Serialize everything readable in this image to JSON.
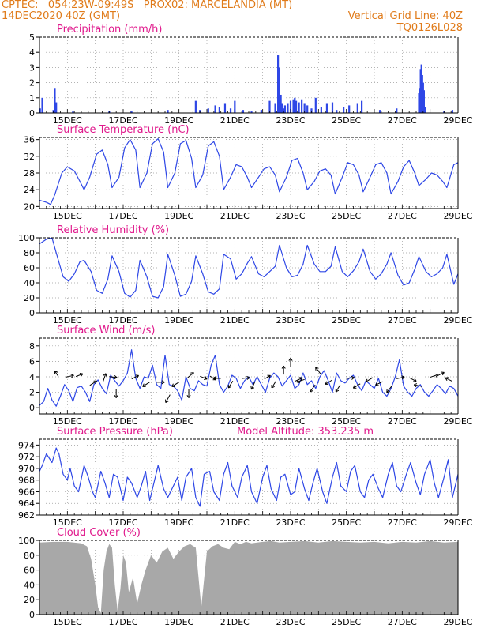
{
  "header": {
    "line1": "CPTEC:   054:23W-09:49S   PROX02: MARCELANDIA (MT)",
    "line2_left": "14DEC2020 40Z (GMT)",
    "line2_right": "Vertical Grid Line: 40Z",
    "line3_right": "TQ0126L028"
  },
  "colors": {
    "header": "#e07b1a",
    "title": "#e0198c",
    "series": "#2e47e6",
    "bars": "#2e47e6",
    "cloud": "#a8a8a8",
    "grid": "#9a9a9a",
    "vector": "#000000"
  },
  "x_tick_labels": [
    "15DEC",
    "17DEC",
    "19DEC",
    "21DEC",
    "23DEC",
    "25DEC",
    "27DEC",
    "29DEC"
  ],
  "chart_data": [
    {
      "type": "bar",
      "title": "Precipitation (mm/h)",
      "ylim": [
        0,
        5
      ],
      "yticks": [
        0,
        1,
        2,
        3,
        4,
        5
      ],
      "xlim": [
        14.0,
        29.0
      ],
      "x": [
        14.02,
        14.1,
        14.5,
        14.55,
        14.6,
        15.2,
        16.5,
        17.3,
        18.6,
        19.6,
        19.75,
        20.05,
        20.3,
        20.45,
        20.65,
        20.85,
        21.0,
        21.3,
        21.6,
        21.95,
        22.25,
        22.45,
        22.55,
        22.6,
        22.65,
        22.7,
        22.75,
        22.8,
        22.9,
        23.0,
        23.1,
        23.15,
        23.2,
        23.3,
        23.4,
        23.5,
        23.6,
        23.75,
        23.9,
        24.1,
        24.3,
        24.5,
        24.65,
        24.9,
        25.1,
        25.4,
        25.55,
        26.2,
        26.8,
        27.6,
        27.63,
        27.66,
        27.69,
        27.72,
        27.75,
        27.78,
        27.81,
        28.5,
        28.8
      ],
      "values": [
        0.3,
        1.0,
        0.2,
        1.6,
        0.7,
        0.1,
        0.1,
        0.1,
        0.2,
        0.8,
        0.2,
        0.3,
        0.5,
        0.4,
        0.6,
        0.3,
        0.8,
        0.2,
        0.1,
        0.2,
        0.8,
        0.6,
        3.8,
        3.0,
        1.2,
        0.6,
        0.3,
        0.5,
        0.6,
        0.8,
        0.9,
        1.0,
        0.8,
        0.7,
        0.9,
        0.6,
        0.5,
        0.3,
        1.0,
        0.4,
        0.6,
        0.7,
        0.2,
        0.4,
        0.5,
        0.6,
        0.8,
        0.2,
        0.3,
        1.3,
        1.6,
        2.9,
        3.2,
        2.5,
        2.0,
        1.5,
        0.4,
        0.1,
        0.2
      ]
    },
    {
      "type": "line",
      "title": "Surface Temperature (nC)",
      "ylim": [
        19.5,
        36.5
      ],
      "yticks": [
        20,
        24,
        28,
        32,
        36
      ],
      "xlim": [
        14.0,
        29.0
      ],
      "x": [
        14.0,
        14.25,
        14.4,
        14.55,
        14.8,
        15.0,
        15.25,
        15.45,
        15.6,
        15.8,
        16.05,
        16.25,
        16.45,
        16.6,
        16.85,
        17.05,
        17.25,
        17.45,
        17.6,
        17.85,
        18.05,
        18.25,
        18.45,
        18.6,
        18.85,
        19.05,
        19.25,
        19.45,
        19.6,
        19.85,
        20.05,
        20.25,
        20.45,
        20.6,
        20.85,
        21.05,
        21.25,
        21.45,
        21.6,
        21.85,
        22.05,
        22.25,
        22.45,
        22.6,
        22.85,
        23.05,
        23.25,
        23.45,
        23.6,
        23.85,
        24.05,
        24.25,
        24.45,
        24.6,
        24.85,
        25.05,
        25.25,
        25.45,
        25.6,
        25.85,
        26.05,
        26.25,
        26.45,
        26.6,
        26.85,
        27.05,
        27.25,
        27.45,
        27.6,
        27.85,
        28.05,
        28.25,
        28.45,
        28.6,
        28.85,
        29.0
      ],
      "values": [
        21.5,
        21.0,
        20.5,
        22.8,
        28.0,
        29.5,
        28.5,
        26.0,
        24.0,
        27.0,
        32.5,
        33.5,
        30.0,
        24.5,
        27.0,
        34.0,
        36.0,
        33.5,
        24.5,
        28.0,
        35.0,
        36.2,
        33.0,
        24.5,
        28.0,
        35.0,
        35.8,
        31.5,
        24.5,
        27.5,
        34.5,
        35.5,
        32.0,
        24.0,
        27.0,
        30.0,
        29.5,
        27.0,
        24.5,
        27.0,
        29.0,
        29.5,
        27.5,
        23.5,
        27.0,
        31.0,
        31.5,
        28.0,
        24.0,
        26.0,
        28.5,
        29.0,
        27.5,
        23.0,
        27.0,
        30.5,
        30.0,
        27.5,
        23.5,
        27.0,
        30.0,
        30.5,
        28.0,
        23.0,
        26.0,
        29.5,
        31.0,
        28.0,
        25.0,
        26.5,
        28.0,
        27.5,
        26.0,
        24.5,
        30.0,
        30.5
      ]
    },
    {
      "type": "line",
      "title": "Relative Humidity (%)",
      "ylim": [
        0,
        100
      ],
      "yticks": [
        0,
        20,
        40,
        60,
        80,
        100
      ],
      "xlim": [
        14.0,
        29.0
      ],
      "x": [
        14.0,
        14.25,
        14.45,
        14.6,
        14.85,
        15.05,
        15.25,
        15.45,
        15.6,
        15.85,
        16.05,
        16.25,
        16.45,
        16.6,
        16.85,
        17.05,
        17.25,
        17.45,
        17.6,
        17.85,
        18.05,
        18.25,
        18.45,
        18.6,
        18.85,
        19.05,
        19.25,
        19.45,
        19.6,
        19.85,
        20.05,
        20.25,
        20.45,
        20.6,
        20.85,
        21.05,
        21.25,
        21.45,
        21.6,
        21.85,
        22.05,
        22.25,
        22.45,
        22.6,
        22.85,
        23.05,
        23.25,
        23.45,
        23.6,
        23.85,
        24.05,
        24.25,
        24.45,
        24.6,
        24.85,
        25.05,
        25.25,
        25.45,
        25.6,
        25.85,
        26.05,
        26.25,
        26.45,
        26.6,
        26.85,
        27.05,
        27.25,
        27.45,
        27.6,
        27.85,
        28.05,
        28.25,
        28.45,
        28.6,
        28.85,
        29.0
      ],
      "values": [
        92,
        98,
        100,
        80,
        48,
        42,
        52,
        68,
        70,
        55,
        30,
        26,
        45,
        76,
        55,
        26,
        21,
        30,
        70,
        48,
        22,
        20,
        35,
        78,
        50,
        22,
        25,
        42,
        76,
        52,
        28,
        25,
        32,
        78,
        72,
        45,
        52,
        66,
        75,
        52,
        48,
        55,
        62,
        90,
        60,
        48,
        50,
        65,
        90,
        65,
        55,
        55,
        62,
        88,
        55,
        48,
        56,
        68,
        85,
        55,
        45,
        52,
        65,
        80,
        50,
        37,
        40,
        58,
        75,
        55,
        48,
        52,
        60,
        78,
        38,
        52
      ],
      "extra_peaks": [
        [
          21.55,
          80
        ],
        [
          23.1,
          100
        ],
        [
          23.3,
          98
        ],
        [
          28.4,
          83
        ]
      ]
    },
    {
      "type": "line",
      "title": "Surface Wind (m/s)",
      "ylim": [
        -0.8,
        9.0
      ],
      "yticks": [
        0,
        2,
        4,
        6,
        8
      ],
      "xlim": [
        14.0,
        29.0
      ],
      "x": [
        14.0,
        14.15,
        14.3,
        14.45,
        14.6,
        14.75,
        14.9,
        15.05,
        15.2,
        15.35,
        15.5,
        15.65,
        15.8,
        15.95,
        16.1,
        16.25,
        16.4,
        16.55,
        16.7,
        16.85,
        17.0,
        17.15,
        17.3,
        17.45,
        17.6,
        17.75,
        17.9,
        18.05,
        18.2,
        18.35,
        18.5,
        18.65,
        18.8,
        18.95,
        19.1,
        19.25,
        19.4,
        19.55,
        19.7,
        19.85,
        20.0,
        20.15,
        20.3,
        20.45,
        20.6,
        20.75,
        20.9,
        21.05,
        21.2,
        21.35,
        21.5,
        21.65,
        21.8,
        21.95,
        22.1,
        22.25,
        22.4,
        22.55,
        22.7,
        22.85,
        23.0,
        23.15,
        23.3,
        23.45,
        23.6,
        23.75,
        23.9,
        24.05,
        24.2,
        24.35,
        24.5,
        24.65,
        24.8,
        24.95,
        25.1,
        25.25,
        25.4,
        25.55,
        25.7,
        25.85,
        26.0,
        26.15,
        26.3,
        26.45,
        26.6,
        26.75,
        26.9,
        27.05,
        27.2,
        27.35,
        27.5,
        27.65,
        27.8,
        27.95,
        28.1,
        28.25,
        28.4,
        28.55,
        28.7,
        28.85,
        29.0
      ],
      "values": [
        0.3,
        0.8,
        2.5,
        1.0,
        0.2,
        1.5,
        3.0,
        2.2,
        0.8,
        2.6,
        2.8,
        2.0,
        0.8,
        3.0,
        3.6,
        2.5,
        1.8,
        4.2,
        3.5,
        2.8,
        3.5,
        4.5,
        7.5,
        3.8,
        2.5,
        4.0,
        3.8,
        5.5,
        3.0,
        2.5,
        6.8,
        3.0,
        2.8,
        2.2,
        1.0,
        4.0,
        2.5,
        2.2,
        3.5,
        3.0,
        2.8,
        5.5,
        6.8,
        3.0,
        2.0,
        2.8,
        4.2,
        3.8,
        2.5,
        3.5,
        4.0,
        3.0,
        4.0,
        3.0,
        2.0,
        3.8,
        4.5,
        4.0,
        2.8,
        3.5,
        4.2,
        2.5,
        3.0,
        4.5,
        3.0,
        3.5,
        2.5,
        4.0,
        4.8,
        3.5,
        2.0,
        4.5,
        3.5,
        3.2,
        3.8,
        4.2,
        3.0,
        2.2,
        3.5,
        3.0,
        2.5,
        3.8,
        2.0,
        1.5,
        2.5,
        4.0,
        6.2,
        2.8,
        2.0,
        1.5,
        2.5,
        3.0,
        2.0,
        1.5,
        2.2,
        3.0,
        2.5,
        1.8,
        2.8,
        2.5,
        1.5
      ],
      "vectors": [
        {
          "x": 14.65,
          "y": 4.2,
          "u": -0.4,
          "v": 0.6
        },
        {
          "x": 15.0,
          "y": 4.0,
          "u": 0.9,
          "v": 0.2
        },
        {
          "x": 15.35,
          "y": 4.1,
          "u": 0.8,
          "v": 0.3
        },
        {
          "x": 15.85,
          "y": 3.0,
          "u": 0.8,
          "v": 0.5
        },
        {
          "x": 16.3,
          "y": 3.6,
          "u": 0.3,
          "v": 0.9
        },
        {
          "x": 16.55,
          "y": 4.0,
          "u": 0.9,
          "v": -0.1
        },
        {
          "x": 16.75,
          "y": 2.2,
          "u": 0.0,
          "v": -1.0
        },
        {
          "x": 17.35,
          "y": 3.8,
          "u": 0.8,
          "v": 0.4
        },
        {
          "x": 17.9,
          "y": 3.2,
          "u": -0.8,
          "v": -0.5
        },
        {
          "x": 18.25,
          "y": 3.3,
          "u": 0.9,
          "v": 0.0
        },
        {
          "x": 18.65,
          "y": 1.5,
          "u": -0.5,
          "v": -0.9
        },
        {
          "x": 18.95,
          "y": 3.2,
          "u": -0.8,
          "v": -0.5
        },
        {
          "x": 19.35,
          "y": 2.2,
          "u": 0.0,
          "v": -1.0
        },
        {
          "x": 19.35,
          "y": 4.0,
          "u": 0.7,
          "v": 0.6
        },
        {
          "x": 19.8,
          "y": 4.0,
          "u": 0.8,
          "v": -0.3
        },
        {
          "x": 20.15,
          "y": 4.0,
          "u": 0.7,
          "v": -0.4
        },
        {
          "x": 20.45,
          "y": 3.8,
          "u": -0.9,
          "v": 0.0
        },
        {
          "x": 20.9,
          "y": 3.3,
          "u": -0.5,
          "v": -0.8
        },
        {
          "x": 21.3,
          "y": 3.8,
          "u": 0.9,
          "v": 0.1
        },
        {
          "x": 21.7,
          "y": 3.2,
          "u": -0.4,
          "v": -0.9
        },
        {
          "x": 22.1,
          "y": 3.8,
          "u": 0.7,
          "v": 0.4
        },
        {
          "x": 22.45,
          "y": 3.3,
          "u": -0.5,
          "v": -0.8
        },
        {
          "x": 22.75,
          "y": 4.5,
          "u": 0.0,
          "v": 1.0
        },
        {
          "x": 23.0,
          "y": 5.5,
          "u": 0.0,
          "v": 1.0
        },
        {
          "x": 23.2,
          "y": 3.5,
          "u": 0.9,
          "v": 0.4
        },
        {
          "x": 23.45,
          "y": 3.6,
          "u": -0.9,
          "v": -0.3
        },
        {
          "x": 23.85,
          "y": 2.8,
          "u": -0.6,
          "v": -0.8
        },
        {
          "x": 24.05,
          "y": 4.5,
          "u": -0.6,
          "v": 0.8
        },
        {
          "x": 24.45,
          "y": 3.5,
          "u": -0.8,
          "v": -0.5
        },
        {
          "x": 24.75,
          "y": 2.8,
          "u": -0.5,
          "v": -0.8
        },
        {
          "x": 25.05,
          "y": 3.8,
          "u": 0.9,
          "v": 0.1
        },
        {
          "x": 25.45,
          "y": 3.0,
          "u": -0.8,
          "v": -0.5
        },
        {
          "x": 25.9,
          "y": 3.8,
          "u": -0.8,
          "v": -0.5
        },
        {
          "x": 26.25,
          "y": 3.3,
          "u": -0.8,
          "v": -0.4
        },
        {
          "x": 26.6,
          "y": 2.7,
          "u": -0.6,
          "v": -0.8
        },
        {
          "x": 26.85,
          "y": 3.8,
          "u": 0.9,
          "v": 0.2
        },
        {
          "x": 27.3,
          "y": 3.8,
          "u": 0.8,
          "v": -0.4
        },
        {
          "x": 27.65,
          "y": 2.8,
          "u": -0.9,
          "v": 0.2
        },
        {
          "x": 28.05,
          "y": 4.0,
          "u": 0.9,
          "v": 0.3
        },
        {
          "x": 28.3,
          "y": 4.2,
          "u": 0.8,
          "v": 0.4
        },
        {
          "x": 28.75,
          "y": 3.5,
          "u": -0.8,
          "v": 0.4
        }
      ]
    },
    {
      "type": "line",
      "title": "Surface Pressure (hPa)",
      "annotation": "Model Altitude: 353.235 m",
      "ylim": [
        962,
        975
      ],
      "yticks": [
        962,
        964,
        966,
        968,
        970,
        972,
        974
      ],
      "xlim": [
        14.0,
        29.0
      ],
      "x": [
        14.0,
        14.1,
        14.25,
        14.45,
        14.6,
        14.7,
        14.85,
        15.0,
        15.1,
        15.25,
        15.4,
        15.6,
        15.75,
        15.9,
        16.0,
        16.2,
        16.35,
        16.5,
        16.65,
        16.8,
        17.0,
        17.15,
        17.3,
        17.5,
        17.65,
        17.8,
        17.95,
        18.1,
        18.25,
        18.45,
        18.6,
        18.75,
        18.95,
        19.1,
        19.25,
        19.45,
        19.6,
        19.75,
        19.9,
        20.1,
        20.25,
        20.45,
        20.6,
        20.75,
        20.9,
        21.1,
        21.25,
        21.45,
        21.6,
        21.8,
        22.0,
        22.15,
        22.3,
        22.5,
        22.65,
        22.8,
        23.0,
        23.15,
        23.3,
        23.5,
        23.65,
        23.8,
        23.95,
        24.15,
        24.3,
        24.5,
        24.65,
        24.8,
        25.0,
        25.15,
        25.3,
        25.5,
        25.65,
        25.8,
        25.95,
        26.15,
        26.3,
        26.5,
        26.65,
        26.8,
        26.95,
        27.15,
        27.3,
        27.5,
        27.65,
        27.8,
        28.0,
        28.15,
        28.3,
        28.5,
        28.65,
        28.8,
        29.0
      ],
      "values": [
        969.5,
        970.5,
        972.5,
        971.0,
        973.5,
        972.5,
        969.0,
        968.0,
        970.0,
        967.0,
        966.0,
        970.5,
        968.5,
        966.0,
        965.0,
        969.5,
        967.5,
        965.0,
        969.0,
        968.5,
        964.5,
        968.5,
        967.5,
        965.0,
        967.0,
        969.5,
        964.5,
        967.5,
        970.5,
        966.5,
        965.0,
        966.5,
        968.5,
        964.5,
        968.5,
        970.0,
        965.0,
        963.5,
        969.0,
        969.5,
        966.0,
        964.5,
        969.0,
        971.0,
        967.0,
        965.0,
        968.5,
        970.5,
        966.0,
        964.0,
        968.5,
        970.5,
        966.5,
        964.5,
        968.5,
        969.0,
        965.5,
        966.0,
        970.0,
        966.5,
        964.5,
        967.5,
        970.0,
        966.0,
        964.0,
        968.5,
        971.0,
        967.0,
        966.0,
        969.5,
        970.5,
        966.0,
        965.0,
        968.0,
        969.0,
        966.5,
        965.0,
        969.0,
        971.0,
        967.0,
        966.0,
        969.0,
        971.0,
        967.5,
        965.5,
        969.0,
        971.5,
        967.5,
        965.0,
        968.5,
        971.5,
        965.0,
        969.0
      ]
    },
    {
      "type": "area",
      "title": "Cloud Cover (%)",
      "ylim": [
        0,
        100
      ],
      "yticks": [
        0,
        20,
        40,
        60,
        80,
        100
      ],
      "xlim": [
        14.0,
        29.0
      ],
      "x": [
        14.0,
        14.5,
        15.0,
        15.5,
        15.7,
        15.85,
        16.0,
        16.1,
        16.2,
        16.3,
        16.4,
        16.5,
        16.6,
        16.7,
        16.8,
        16.9,
        17.0,
        17.1,
        17.2,
        17.35,
        17.5,
        17.65,
        17.8,
        18.0,
        18.2,
        18.4,
        18.6,
        18.8,
        19.0,
        19.2,
        19.4,
        19.6,
        19.8,
        20.0,
        20.2,
        20.4,
        20.6,
        20.8,
        21.0,
        21.2,
        21.4,
        21.6,
        21.8,
        22.0,
        22.3,
        22.6,
        23.0,
        23.5,
        24.0,
        24.5,
        25.0,
        25.5,
        26.0,
        26.5,
        27.0,
        27.5,
        28.0,
        28.5,
        29.0
      ],
      "values": [
        97,
        98,
        98,
        96,
        92,
        75,
        40,
        10,
        2,
        60,
        85,
        95,
        90,
        40,
        5,
        35,
        80,
        70,
        30,
        50,
        15,
        40,
        60,
        80,
        70,
        85,
        90,
        75,
        85,
        92,
        95,
        90,
        10,
        85,
        92,
        95,
        90,
        88,
        98,
        95,
        98,
        96,
        97,
        98,
        99,
        97,
        98,
        99,
        97,
        99,
        98,
        97,
        98,
        96,
        98,
        97,
        99,
        97,
        98
      ]
    }
  ]
}
